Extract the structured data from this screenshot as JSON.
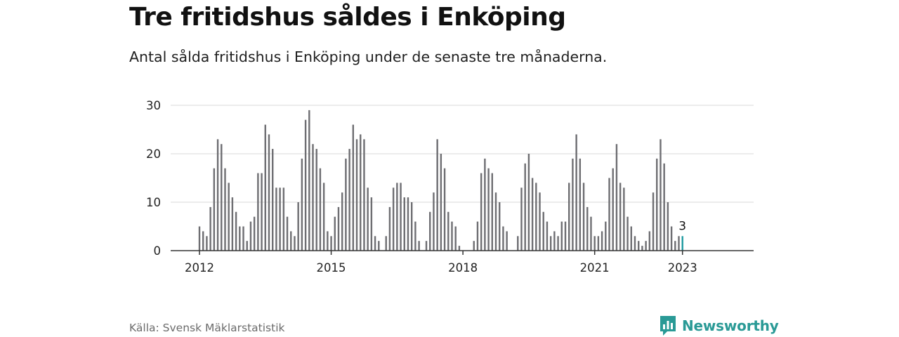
{
  "header": {
    "title": "Tre fritidshus såldes i Enköping",
    "subtitle": "Antal sålda fritidshus i Enköping under de senaste tre månaderna."
  },
  "footer": {
    "source": "Källa: Svensk Mäklarstatistik",
    "brand": "Newsworthy",
    "brand_icon": "newsworthy-chart-bubble-icon"
  },
  "colors": {
    "bar": "#6e6e72",
    "highlight": "#1f9aa0",
    "grid": "#d9d9d9",
    "axis": "#333333",
    "brand": "#2a9a96"
  },
  "chart_data": {
    "type": "bar",
    "title": "Tre fritidshus såldes i Enköping",
    "subtitle": "Antal sålda fritidshus i Enköping under de senaste tre månaderna.",
    "xlabel": "",
    "ylabel": "",
    "ylim": [
      0,
      30
    ],
    "yticks": [
      0,
      10,
      20,
      30
    ],
    "xtick_labels": [
      "2012",
      "2015",
      "2018",
      "2021",
      "2023"
    ],
    "grid": true,
    "highlight_label": "3",
    "series": [
      {
        "values": [
          5,
          4,
          3,
          9,
          17,
          23,
          22,
          17,
          14,
          11,
          8,
          5,
          5,
          2,
          6,
          7,
          16,
          16,
          26,
          24,
          21,
          13,
          13,
          13,
          7,
          4,
          3,
          10,
          19,
          27,
          29,
          22,
          21,
          17,
          14,
          4,
          3,
          7,
          9,
          12,
          19,
          21,
          26,
          23,
          24,
          23,
          13,
          11,
          3,
          2,
          0,
          3,
          9,
          13,
          14,
          14,
          11,
          11,
          10,
          6,
          2,
          0,
          2,
          8,
          12,
          23,
          20,
          17,
          8,
          6,
          5,
          1,
          0,
          0,
          0,
          2,
          6,
          16,
          19,
          17,
          16,
          12,
          10,
          5,
          4,
          0,
          0,
          3,
          13,
          18,
          20,
          15,
          14,
          12,
          8,
          6,
          3,
          4,
          3,
          6,
          6,
          14,
          19,
          24,
          19,
          14,
          9,
          7,
          3,
          3,
          4,
          6,
          15,
          17,
          22,
          14,
          13,
          7,
          5,
          3,
          2,
          1,
          2,
          4,
          12,
          19,
          23,
          18,
          10,
          5,
          2,
          3,
          3
        ]
      }
    ]
  }
}
